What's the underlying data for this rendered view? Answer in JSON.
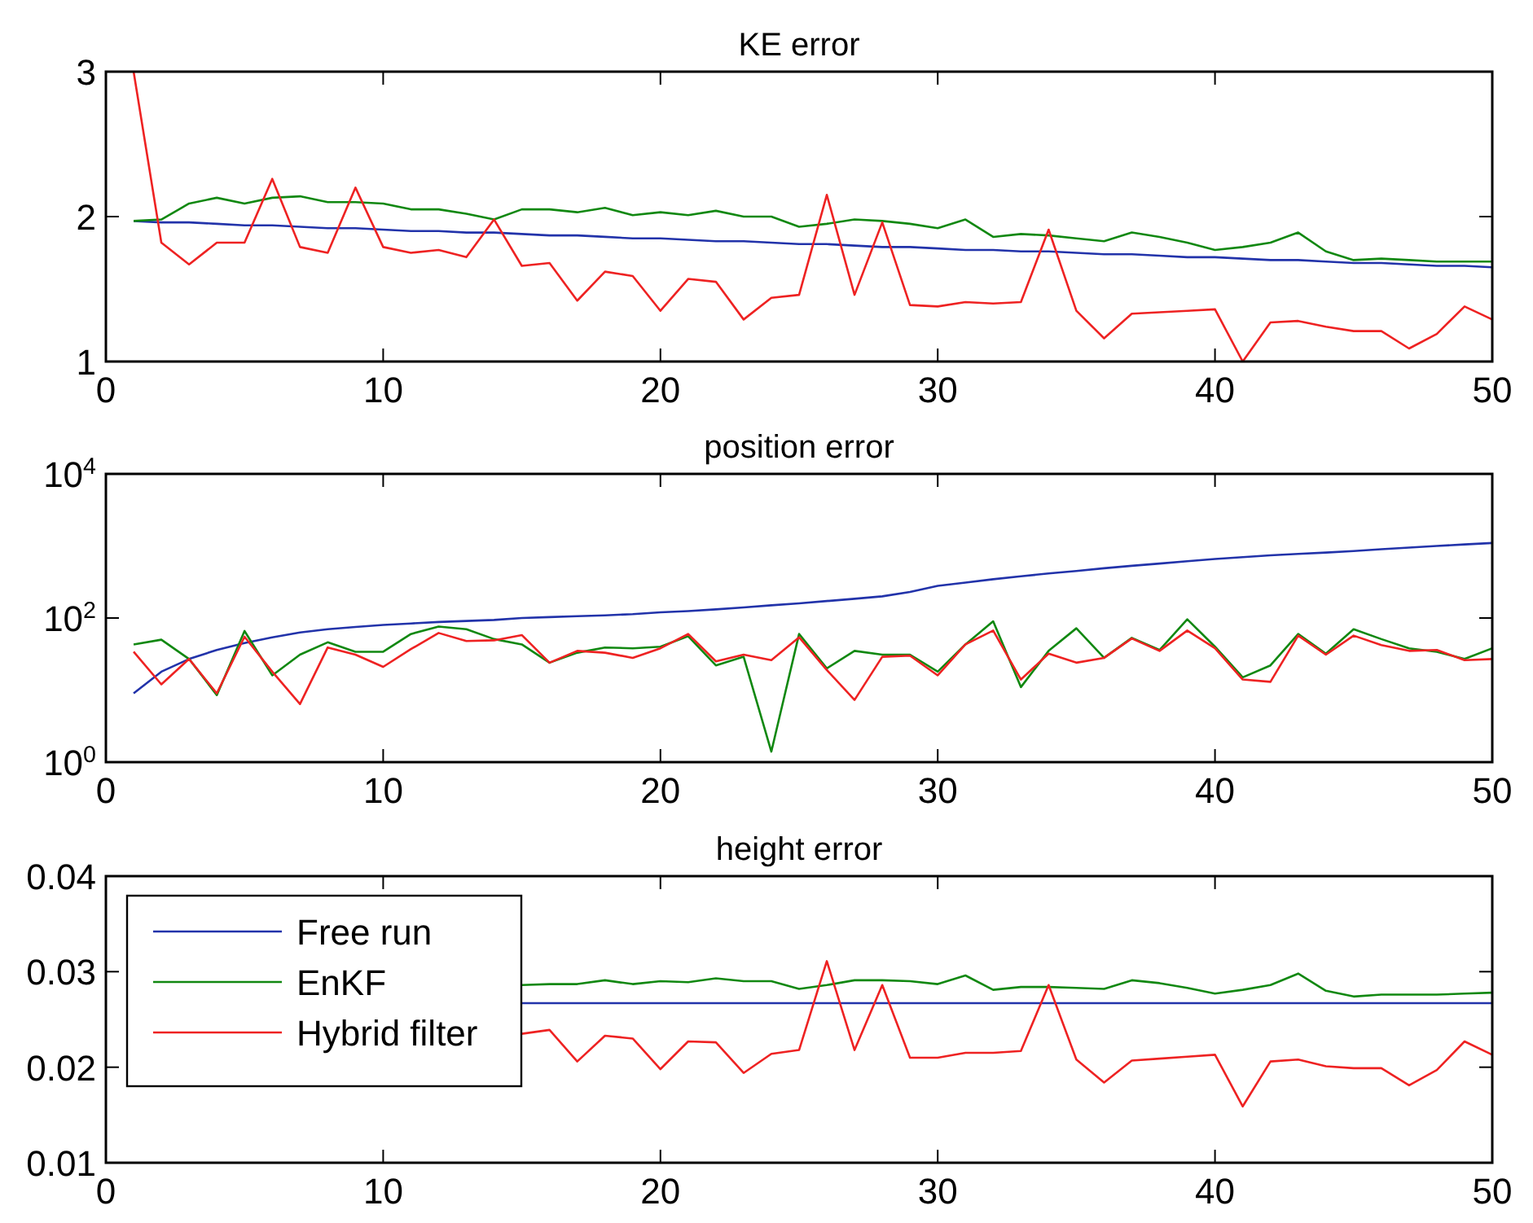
{
  "chart_data": [
    {
      "type": "line",
      "title": "KE error",
      "x": [
        1,
        2,
        3,
        4,
        5,
        6,
        7,
        8,
        9,
        10,
        11,
        12,
        13,
        14,
        15,
        16,
        17,
        18,
        19,
        20,
        21,
        22,
        23,
        24,
        25,
        26,
        27,
        28,
        29,
        30,
        31,
        32,
        33,
        34,
        35,
        36,
        37,
        38,
        39,
        40,
        41,
        42,
        43,
        44,
        45,
        46,
        47,
        48,
        49,
        50
      ],
      "xlim": [
        0,
        50
      ],
      "xticks": [
        0,
        10,
        20,
        30,
        40,
        50
      ],
      "ylim": [
        1,
        3
      ],
      "yticks": [
        1,
        2,
        3
      ],
      "grid": false,
      "line_style": "solid",
      "marker": "none",
      "series": [
        {
          "color": "#2233aa",
          "values": [
            1.97,
            1.96,
            1.96,
            1.95,
            1.94,
            1.94,
            1.93,
            1.92,
            1.92,
            1.91,
            1.9,
            1.9,
            1.89,
            1.89,
            1.88,
            1.87,
            1.87,
            1.86,
            1.85,
            1.85,
            1.84,
            1.83,
            1.83,
            1.82,
            1.81,
            1.81,
            1.8,
            1.79,
            1.79,
            1.78,
            1.77,
            1.77,
            1.76,
            1.76,
            1.75,
            1.74,
            1.74,
            1.73,
            1.72,
            1.72,
            1.71,
            1.7,
            1.7,
            1.69,
            1.68,
            1.68,
            1.67,
            1.66,
            1.66,
            1.65
          ]
        },
        {
          "color": "#118811",
          "values": [
            1.97,
            1.98,
            2.09,
            2.13,
            2.09,
            2.13,
            2.14,
            2.1,
            2.1,
            2.09,
            2.05,
            2.05,
            2.02,
            1.98,
            2.05,
            2.05,
            2.03,
            2.06,
            2.01,
            2.03,
            2.01,
            2.04,
            2.0,
            2.0,
            1.93,
            1.95,
            1.98,
            1.97,
            1.95,
            1.92,
            1.98,
            1.86,
            1.88,
            1.87,
            1.85,
            1.83,
            1.89,
            1.86,
            1.82,
            1.77,
            1.79,
            1.82,
            1.89,
            1.76,
            1.7,
            1.71,
            1.7,
            1.69,
            1.69,
            1.69
          ]
        },
        {
          "color": "#ee2222",
          "values": [
            3,
            1.82,
            1.67,
            1.82,
            1.82,
            2.26,
            1.79,
            1.75,
            2.2,
            1.79,
            1.75,
            1.77,
            1.72,
            1.98,
            1.66,
            1.68,
            1.42,
            1.62,
            1.59,
            1.35,
            1.57,
            1.55,
            1.29,
            1.44,
            1.46,
            2.15,
            1.46,
            1.96,
            1.39,
            1.38,
            1.41,
            1.4,
            1.41,
            1.91,
            1.35,
            1.16,
            1.33,
            1.34,
            1.35,
            1.36,
            1.0,
            1.27,
            1.28,
            1.24,
            1.21,
            1.21,
            1.09,
            1.19,
            1.38,
            1.29
          ]
        }
      ]
    },
    {
      "type": "line",
      "title": "position error",
      "log": "y",
      "x": [
        1,
        2,
        3,
        4,
        5,
        6,
        7,
        8,
        9,
        10,
        11,
        12,
        13,
        14,
        15,
        16,
        17,
        18,
        19,
        20,
        21,
        22,
        23,
        24,
        25,
        26,
        27,
        28,
        29,
        30,
        31,
        32,
        33,
        34,
        35,
        36,
        37,
        38,
        39,
        40,
        41,
        42,
        43,
        44,
        45,
        46,
        47,
        48,
        49,
        50
      ],
      "xlim": [
        0,
        50
      ],
      "xticks": [
        0,
        10,
        20,
        30,
        40,
        50
      ],
      "ylim": [
        1,
        10000
      ],
      "yticks": [
        {
          "value": 1,
          "label": "10$^{0}$"
        },
        {
          "value": 100,
          "label": "10$^{2}$"
        },
        {
          "value": 10000,
          "label": "10$^{4}$"
        }
      ],
      "grid": false,
      "line_style": "solid",
      "marker": "none",
      "series": [
        {
          "color": "#2233aa",
          "values": [
            9,
            18,
            27,
            36,
            45,
            54,
            63,
            70,
            75,
            80,
            84,
            88,
            91,
            94,
            100,
            103,
            106,
            109,
            113,
            120,
            125,
            132,
            140,
            150,
            160,
            172,
            185,
            200,
            230,
            280,
            310,
            345,
            380,
            415,
            450,
            490,
            530,
            570,
            615,
            660,
            700,
            740,
            775,
            810,
            850,
            900,
            950,
            1000,
            1050,
            1100
          ]
        },
        {
          "color": "#118811",
          "values": [
            43,
            50,
            27,
            8.5,
            66,
            16,
            31,
            46,
            34,
            34,
            60,
            76,
            70,
            51,
            43,
            24,
            33,
            39,
            38,
            40,
            56,
            22,
            29,
            1.4,
            60,
            20,
            35,
            31,
            31,
            18,
            43,
            90,
            11,
            35,
            72,
            28,
            53,
            36,
            96,
            40,
            15,
            22,
            60,
            32,
            70,
            51,
            38,
            34,
            27,
            38
          ]
        },
        {
          "color": "#ee2222",
          "values": [
            34,
            12,
            27,
            9,
            55,
            18,
            6.4,
            39,
            31,
            21,
            37,
            62,
            48,
            49,
            58,
            24,
            35,
            33,
            28,
            38,
            60,
            25,
            31,
            26,
            54,
            19,
            7.3,
            29,
            30,
            16,
            43,
            67,
            14,
            32,
            24,
            28,
            52,
            35,
            67,
            38,
            14,
            13,
            57,
            31,
            57,
            42,
            35,
            36,
            26,
            27
          ]
        }
      ]
    },
    {
      "type": "line",
      "title": "height error",
      "x": [
        15,
        16,
        17,
        18,
        19,
        20,
        21,
        22,
        23,
        24,
        25,
        26,
        27,
        28,
        29,
        30,
        31,
        32,
        33,
        34,
        35,
        36,
        37,
        38,
        39,
        40,
        41,
        42,
        43,
        44,
        45,
        46,
        47,
        48,
        49,
        50
      ],
      "xlim": [
        0,
        50
      ],
      "xticks": [
        0,
        10,
        20,
        30,
        40,
        50
      ],
      "ylim": [
        0.01,
        0.04
      ],
      "yticks": [
        0.01,
        0.02,
        0.03,
        0.04
      ],
      "grid": false,
      "line_style": "solid",
      "marker": "none",
      "legend": "top left",
      "series": [
        {
          "name": "Free run",
          "color": "#2233aa",
          "values": [
            0.0267,
            0.0267,
            0.0267,
            0.0267,
            0.0267,
            0.0267,
            0.0267,
            0.0267,
            0.0267,
            0.0267,
            0.0267,
            0.0267,
            0.0267,
            0.0267,
            0.0267,
            0.0267,
            0.0267,
            0.0267,
            0.0267,
            0.0267,
            0.0267,
            0.0267,
            0.0267,
            0.0267,
            0.0267,
            0.0267,
            0.0267,
            0.0267,
            0.0267,
            0.0267,
            0.0267,
            0.0267,
            0.0267,
            0.0267,
            0.0267,
            0.0267
          ]
        },
        {
          "name": "EnKF",
          "color": "#118811",
          "values": [
            0.0286,
            0.0287,
            0.0287,
            0.0291,
            0.0287,
            0.029,
            0.0289,
            0.0293,
            0.029,
            0.029,
            0.0282,
            0.0286,
            0.0291,
            0.0291,
            0.029,
            0.0287,
            0.0296,
            0.0281,
            0.0284,
            0.0284,
            0.0283,
            0.0282,
            0.0291,
            0.0288,
            0.0283,
            0.0277,
            0.0281,
            0.0286,
            0.0298,
            0.028,
            0.0274,
            0.0276,
            0.0276,
            0.0276,
            0.0277,
            0.0278
          ]
        },
        {
          "name": "Hybrid filter",
          "color": "#ee2222",
          "values": [
            0.0235,
            0.0239,
            0.0206,
            0.0233,
            0.023,
            0.0198,
            0.0227,
            0.0226,
            0.0194,
            0.0214,
            0.0218,
            0.0311,
            0.0218,
            0.0286,
            0.021,
            0.021,
            0.0215,
            0.0215,
            0.0217,
            0.0286,
            0.0208,
            0.0184,
            0.0207,
            0.0209,
            0.0211,
            0.0213,
            0.0159,
            0.0206,
            0.0208,
            0.0201,
            0.0199,
            0.0199,
            0.0181,
            0.0197,
            0.0227,
            0.0213
          ]
        }
      ]
    }
  ]
}
